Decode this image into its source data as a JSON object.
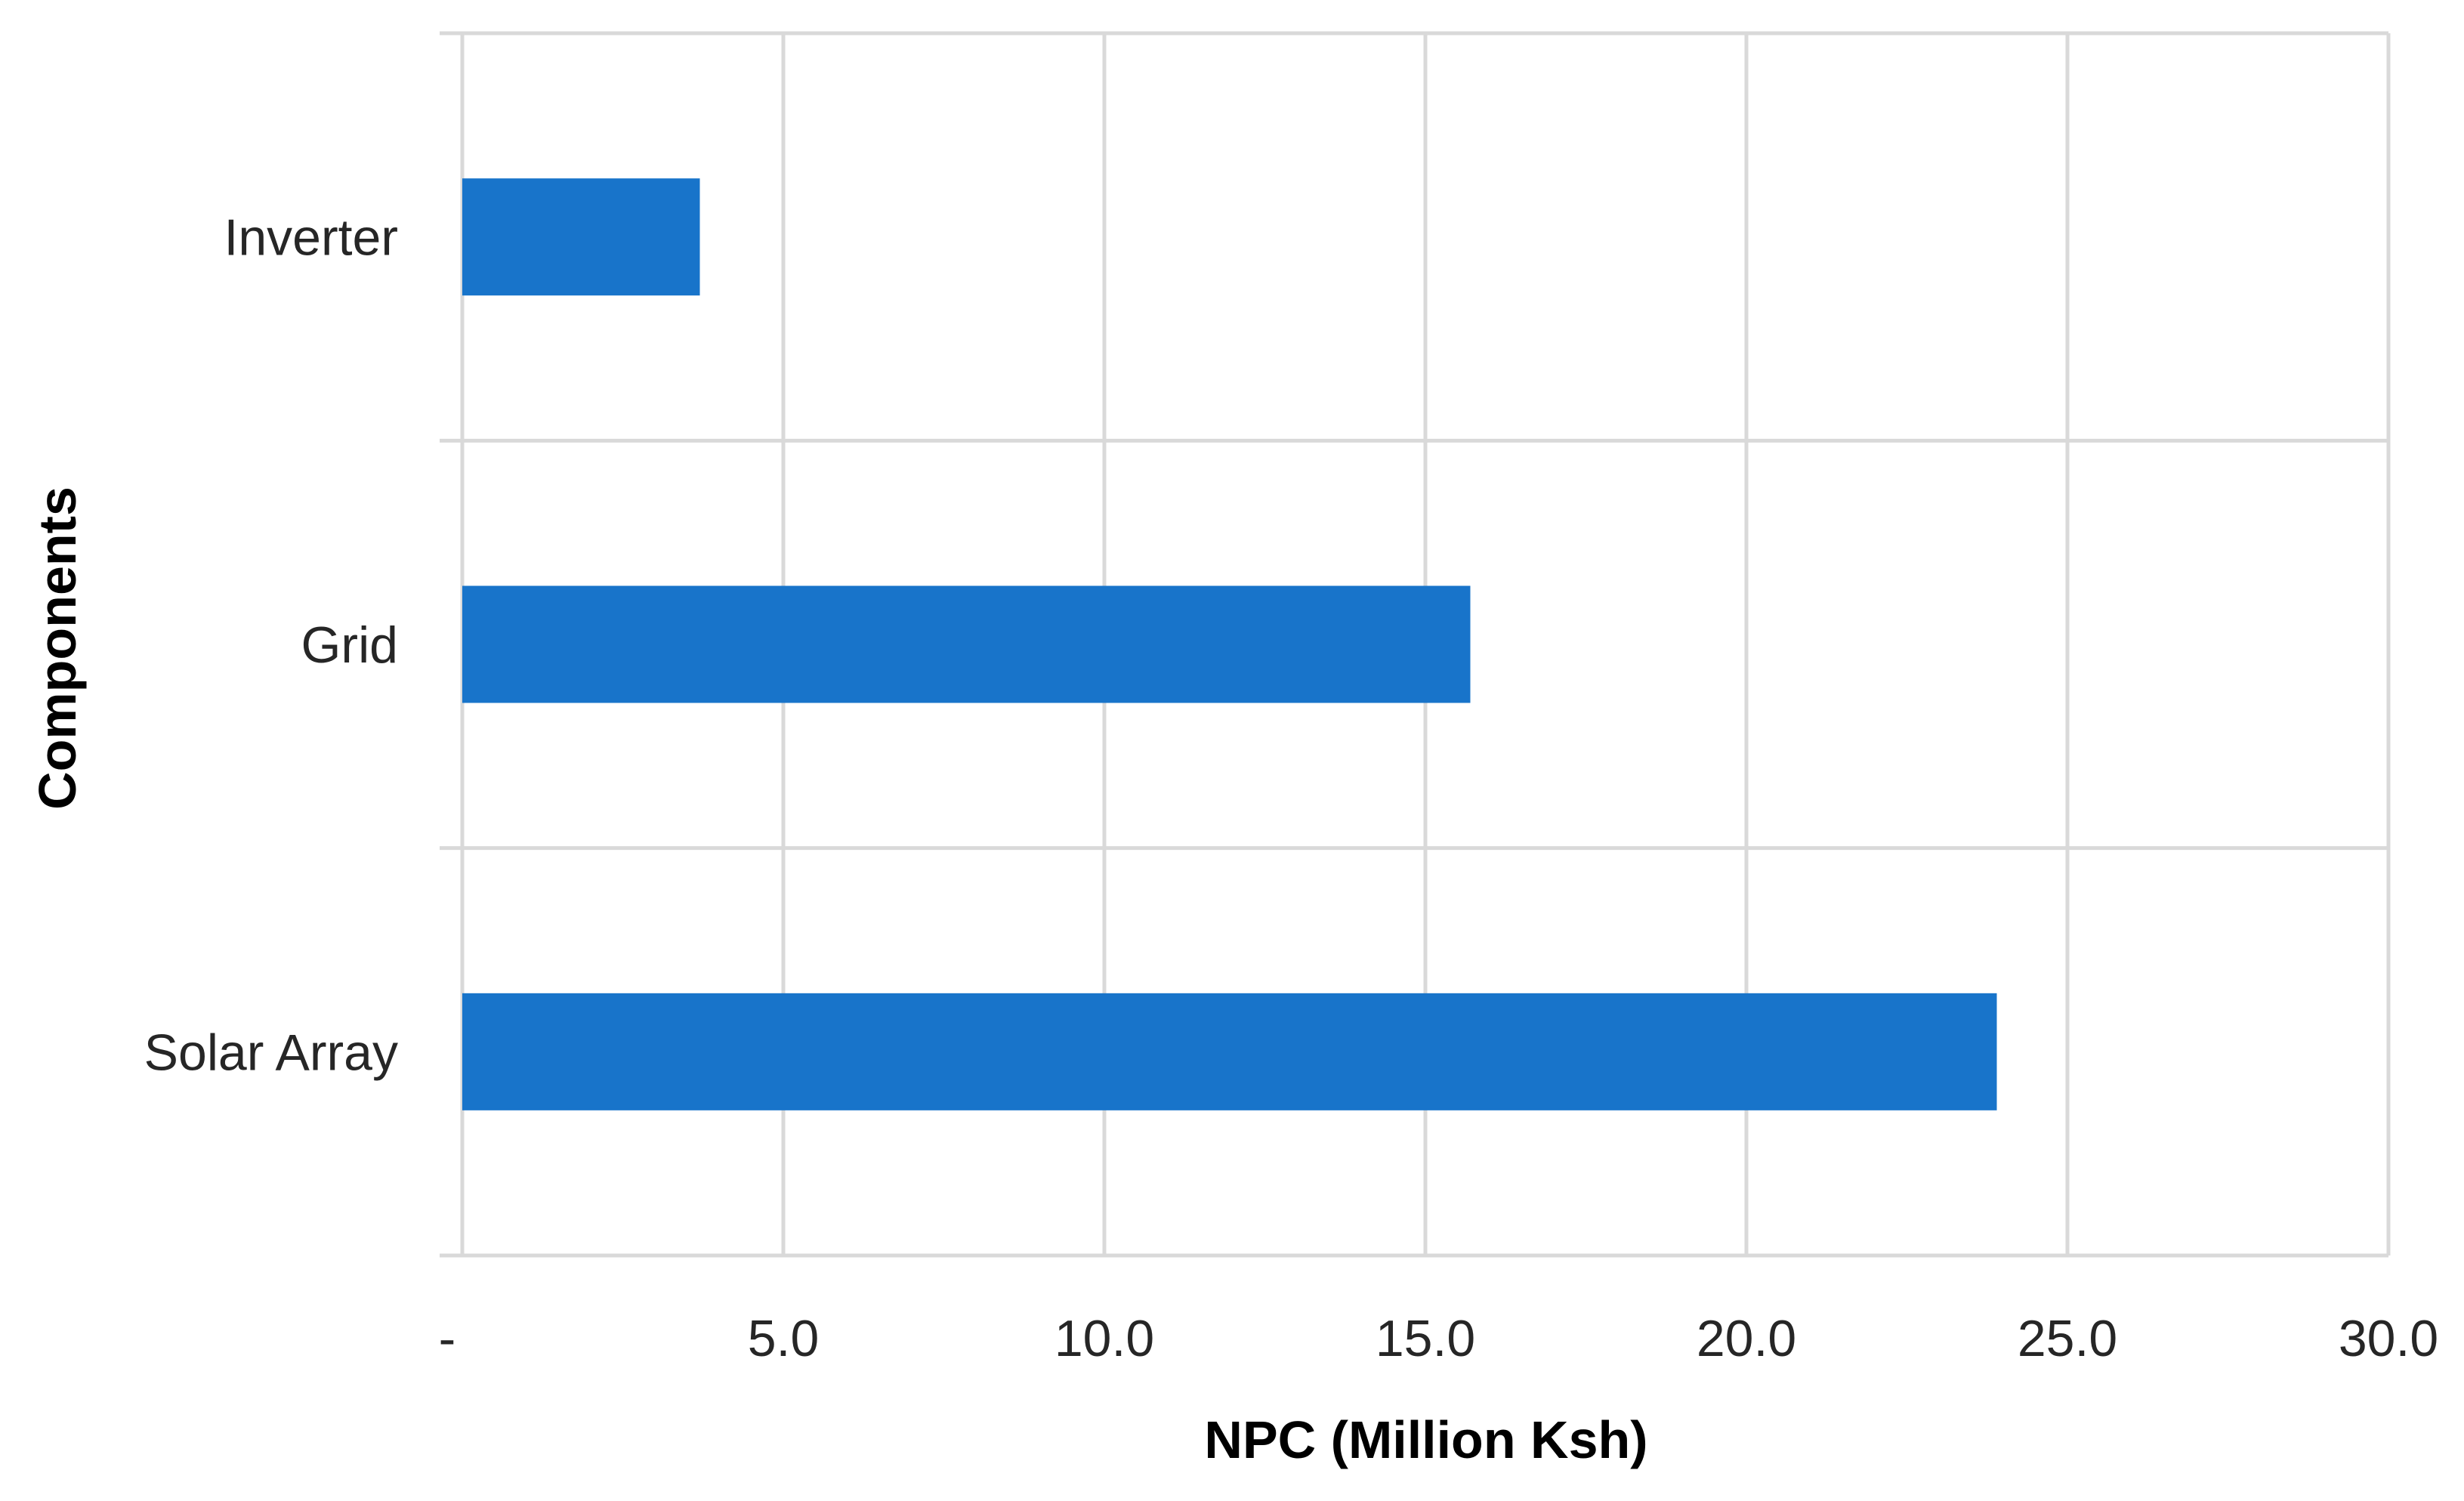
{
  "chart_data": {
    "type": "bar",
    "orientation": "horizontal",
    "title": "",
    "xlabel": "NPC (Million Ksh)",
    "ylabel": "Components",
    "categories": [
      "Inverter",
      "Grid",
      "Solar Array"
    ],
    "values": [
      3.7,
      15.7,
      23.9
    ],
    "xlim": [
      0,
      30
    ],
    "xticks": [
      0,
      5,
      10,
      15,
      20,
      25,
      30
    ],
    "xtick_labels": [
      "-",
      "5.0",
      "10.0",
      "15.0",
      "20.0",
      "25.0",
      "30.0"
    ],
    "grid": true,
    "legend": "none",
    "colors": {
      "bar": "#1874CA",
      "grid": "#D9D9D9"
    }
  }
}
